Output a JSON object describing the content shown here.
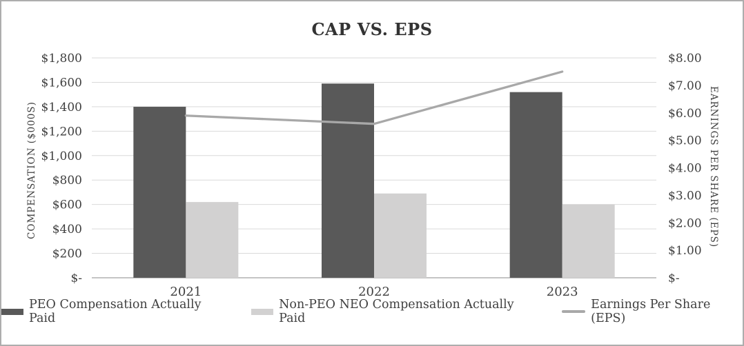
{
  "chart": {
    "title": "CAP VS. EPS"
  },
  "chart_data": {
    "type": "bar",
    "subtype": "clustered-bar-with-line-combo",
    "title": "CAP VS. EPS",
    "categories": [
      "2021",
      "2022",
      "2023"
    ],
    "bar_series": [
      {
        "name": "PEO Compensation Actually Paid",
        "axis": "left",
        "color": "#595959",
        "values": [
          1400,
          1590,
          1520
        ]
      },
      {
        "name": "Non-PEO NEO Compensation Actually Paid",
        "axis": "left",
        "color": "#d2d1d1",
        "values": [
          620,
          690,
          600
        ]
      }
    ],
    "line_series": [
      {
        "name": "Earnings Per Share (EPS)",
        "axis": "right",
        "color": "#a8a8a8",
        "values": [
          5.9,
          5.6,
          7.5
        ]
      }
    ],
    "left_axis": {
      "title": "COMPENSATION ($000S)",
      "min": 0,
      "max": 1800,
      "tick_step": 200,
      "tick_labels": [
        "$-",
        "$200",
        "$400",
        "$600",
        "$800",
        "$1,000",
        "$1,200",
        "$1,400",
        "$1,600",
        "$1,800"
      ]
    },
    "right_axis": {
      "title": "EARNINGS PER SHARE (EPS)",
      "min": 0,
      "max": 8,
      "tick_step": 1,
      "tick_labels": [
        "$-",
        "$1.00",
        "$2.00",
        "$3.00",
        "$4.00",
        "$5.00",
        "$6.00",
        "$7.00",
        "$8.00"
      ]
    },
    "grid": "horizontal",
    "legend_position": "bottom",
    "colors": {
      "gridline": "#d9d9d9",
      "axis_line": "#c4c4c4",
      "text": "#3f3f3f",
      "title_text": "#333333",
      "frame_border": "#adadad"
    }
  },
  "legend": {
    "items": [
      {
        "label": "PEO Compensation Actually Paid",
        "swatch": "bar",
        "color": "#595959"
      },
      {
        "label": "Non-PEO NEO Compensation Actually Paid",
        "swatch": "bar",
        "color": "#d2d1d1"
      },
      {
        "label": "Earnings Per Share (EPS)",
        "swatch": "line",
        "color": "#a8a8a8"
      }
    ]
  }
}
